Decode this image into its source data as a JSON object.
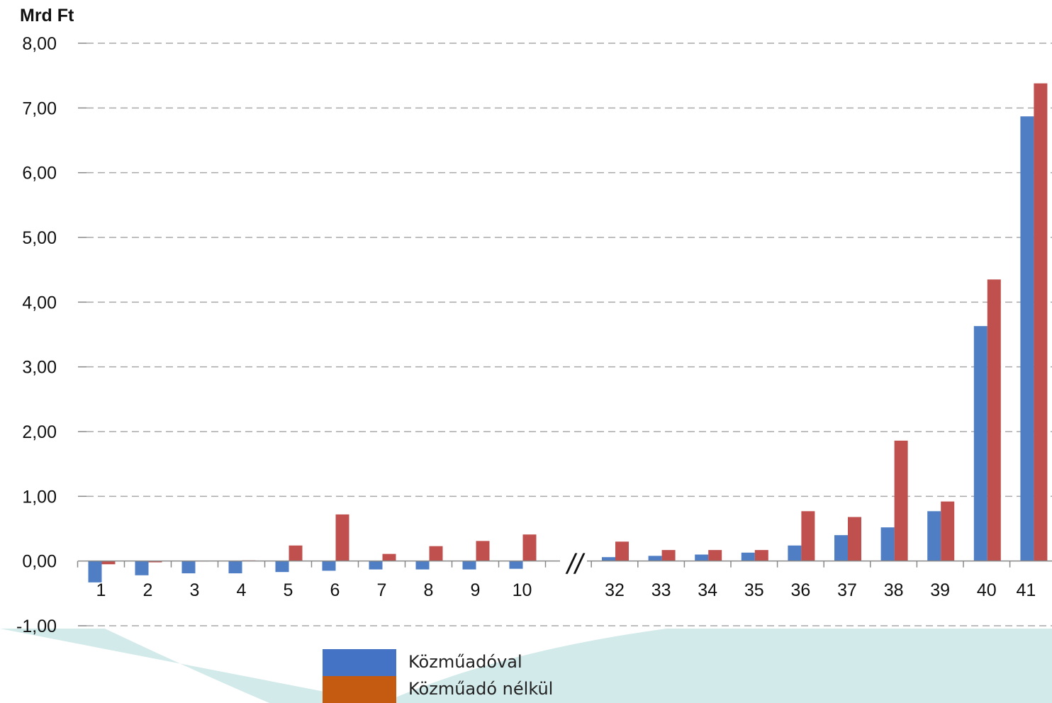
{
  "chart_data": {
    "type": "bar",
    "ylabel": "Mrd Ft",
    "ylim": [
      -1,
      8
    ],
    "yticks": [
      "-1,00",
      "0,00",
      "1,00",
      "2,00",
      "3,00",
      "4,00",
      "5,00",
      "6,00",
      "7,00",
      "8,00"
    ],
    "grid": true,
    "axis_break_between": [
      "10",
      "32"
    ],
    "axis_break_symbol": "//",
    "categories": [
      "1",
      "2",
      "3",
      "4",
      "5",
      "6",
      "7",
      "8",
      "9",
      "10",
      "32",
      "33",
      "34",
      "35",
      "36",
      "37",
      "38",
      "39",
      "40",
      "41"
    ],
    "series": [
      {
        "name": "Közműadóval",
        "color": "#4f7ec4",
        "values": [
          -0.33,
          -0.22,
          -0.19,
          -0.19,
          -0.17,
          -0.15,
          -0.13,
          -0.13,
          -0.13,
          -0.12,
          0.06,
          0.08,
          0.1,
          0.13,
          0.24,
          0.4,
          0.52,
          0.77,
          3.63,
          6.87
        ]
      },
      {
        "name": "Közműadó nélkül",
        "color": "#c0504d",
        "values": [
          -0.05,
          -0.02,
          0.0,
          0.01,
          0.24,
          0.72,
          0.11,
          0.23,
          0.31,
          0.41,
          0.3,
          0.17,
          0.17,
          0.17,
          0.77,
          0.68,
          1.86,
          0.92,
          4.35,
          7.38
        ]
      }
    ],
    "legend": {
      "placement": "bottom",
      "items": [
        {
          "label": "Közműadóval",
          "color": "#4472c4"
        },
        {
          "label": "Közműadó nélkül",
          "color": "#c55a11"
        }
      ]
    }
  },
  "decor": {
    "wave_color": "#d3eaeb"
  }
}
